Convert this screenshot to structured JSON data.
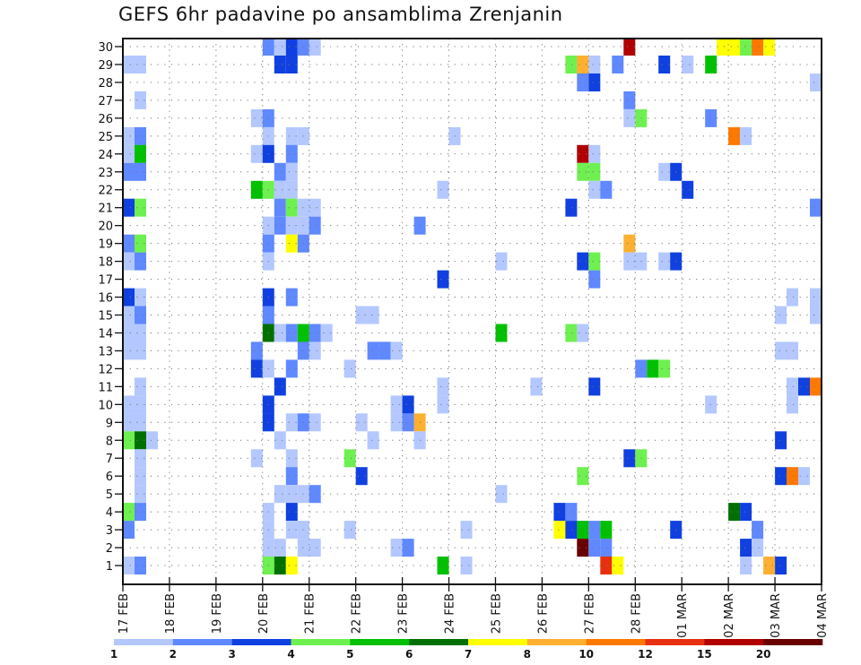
{
  "chart_data": {
    "type": "heatmap",
    "title": "GEFS 6hr padavine po ansamblima Zrenjanin",
    "xlabel": "",
    "ylabel": "",
    "x_tick_labels": [
      "17 FEB",
      "18 FEB",
      "19 FEB",
      "20 FEB",
      "21 FEB",
      "22 FEB",
      "23 FEB",
      "24 FEB",
      "25 FEB",
      "26 FEB",
      "27 FEB",
      "28 FEB",
      "01 MAR",
      "02 MAR",
      "03 MAR",
      "04 MAR"
    ],
    "y_tick_labels": [
      "1",
      "2",
      "3",
      "4",
      "5",
      "6",
      "7",
      "8",
      "9",
      "10",
      "11",
      "12",
      "13",
      "14",
      "15",
      "16",
      "17",
      "18",
      "19",
      "20",
      "21",
      "22",
      "23",
      "24",
      "25",
      "26",
      "27",
      "28",
      "29",
      "30"
    ],
    "ylim": [
      0,
      30
    ],
    "x_steps_per_day": 4,
    "x_steps_total": 60,
    "grid": true,
    "colorbar": {
      "labels": [
        "1",
        "2",
        "3",
        "4",
        "5",
        "6",
        "7",
        "8",
        "10",
        "12",
        "15",
        "20"
      ],
      "colors": [
        "#b4c8ff",
        "#6088ff",
        "#1040e0",
        "#6ef050",
        "#00c000",
        "#007000",
        "#ffff00",
        "#ffb030",
        "#ff7800",
        "#e83010",
        "#b00000",
        "#680000"
      ]
    },
    "cells": [
      [
        30,
        12,
        1
      ],
      [
        30,
        13,
        0
      ],
      [
        30,
        14,
        2
      ],
      [
        30,
        15,
        1
      ],
      [
        30,
        16,
        0
      ],
      [
        30,
        43,
        10
      ],
      [
        30,
        51,
        6
      ],
      [
        30,
        52,
        6
      ],
      [
        30,
        53,
        3
      ],
      [
        30,
        54,
        8
      ],
      [
        30,
        55,
        6
      ],
      [
        29,
        0,
        0
      ],
      [
        29,
        1,
        0
      ],
      [
        29,
        13,
        2
      ],
      [
        29,
        14,
        2
      ],
      [
        29,
        38,
        3
      ],
      [
        29,
        39,
        7
      ],
      [
        29,
        40,
        0
      ],
      [
        29,
        42,
        1
      ],
      [
        29,
        46,
        2
      ],
      [
        29,
        48,
        0
      ],
      [
        29,
        50,
        4
      ],
      [
        28,
        39,
        1
      ],
      [
        28,
        40,
        2
      ],
      [
        28,
        59,
        0
      ],
      [
        27,
        1,
        0
      ],
      [
        27,
        43,
        1
      ],
      [
        26,
        11,
        0
      ],
      [
        26,
        12,
        1
      ],
      [
        26,
        43,
        0
      ],
      [
        26,
        44,
        3
      ],
      [
        26,
        50,
        1
      ],
      [
        25,
        0,
        0
      ],
      [
        25,
        1,
        1
      ],
      [
        25,
        12,
        0
      ],
      [
        25,
        14,
        0
      ],
      [
        25,
        15,
        0
      ],
      [
        25,
        28,
        0
      ],
      [
        25,
        52,
        8
      ],
      [
        25,
        53,
        0
      ],
      [
        24,
        0,
        0
      ],
      [
        24,
        1,
        4
      ],
      [
        24,
        11,
        0
      ],
      [
        24,
        12,
        2
      ],
      [
        24,
        14,
        1
      ],
      [
        24,
        39,
        10
      ],
      [
        24,
        40,
        0
      ],
      [
        23,
        0,
        1
      ],
      [
        23,
        1,
        1
      ],
      [
        23,
        13,
        1
      ],
      [
        23,
        14,
        0
      ],
      [
        23,
        39,
        3
      ],
      [
        23,
        40,
        3
      ],
      [
        23,
        46,
        0
      ],
      [
        23,
        47,
        2
      ],
      [
        22,
        11,
        4
      ],
      [
        22,
        12,
        3
      ],
      [
        22,
        13,
        0
      ],
      [
        22,
        14,
        0
      ],
      [
        22,
        27,
        0
      ],
      [
        22,
        40,
        0
      ],
      [
        22,
        41,
        1
      ],
      [
        22,
        48,
        2
      ],
      [
        21,
        0,
        2
      ],
      [
        21,
        1,
        3
      ],
      [
        21,
        13,
        1
      ],
      [
        21,
        14,
        3
      ],
      [
        21,
        15,
        0
      ],
      [
        21,
        16,
        0
      ],
      [
        21,
        38,
        2
      ],
      [
        21,
        59,
        1
      ],
      [
        21,
        60,
        4
      ],
      [
        20,
        12,
        0
      ],
      [
        20,
        13,
        1
      ],
      [
        20,
        14,
        0
      ],
      [
        20,
        15,
        0
      ],
      [
        20,
        16,
        1
      ],
      [
        20,
        25,
        1
      ],
      [
        19,
        0,
        1
      ],
      [
        19,
        1,
        3
      ],
      [
        19,
        12,
        1
      ],
      [
        19,
        14,
        6
      ],
      [
        19,
        15,
        1
      ],
      [
        19,
        43,
        7
      ],
      [
        18,
        0,
        0
      ],
      [
        18,
        1,
        1
      ],
      [
        18,
        12,
        0
      ],
      [
        18,
        32,
        0
      ],
      [
        18,
        39,
        2
      ],
      [
        18,
        40,
        3
      ],
      [
        18,
        43,
        0
      ],
      [
        18,
        44,
        0
      ],
      [
        18,
        46,
        0
      ],
      [
        18,
        47,
        2
      ],
      [
        17,
        27,
        2
      ],
      [
        17,
        40,
        1
      ],
      [
        16,
        0,
        2
      ],
      [
        16,
        1,
        0
      ],
      [
        16,
        12,
        2
      ],
      [
        16,
        14,
        1
      ],
      [
        16,
        57,
        0
      ],
      [
        16,
        59,
        0
      ],
      [
        15,
        0,
        0
      ],
      [
        15,
        1,
        1
      ],
      [
        15,
        12,
        1
      ],
      [
        15,
        20,
        0
      ],
      [
        15,
        21,
        0
      ],
      [
        15,
        56,
        0
      ],
      [
        15,
        59,
        0
      ],
      [
        14,
        0,
        0
      ],
      [
        14,
        1,
        0
      ],
      [
        14,
        12,
        5
      ],
      [
        14,
        13,
        0
      ],
      [
        14,
        14,
        1
      ],
      [
        14,
        15,
        4
      ],
      [
        14,
        16,
        1
      ],
      [
        14,
        17,
        0
      ],
      [
        14,
        32,
        4
      ],
      [
        14,
        38,
        3
      ],
      [
        14,
        39,
        0
      ],
      [
        13,
        0,
        0
      ],
      [
        13,
        1,
        0
      ],
      [
        13,
        11,
        1
      ],
      [
        13,
        15,
        1
      ],
      [
        13,
        16,
        0
      ],
      [
        13,
        21,
        1
      ],
      [
        13,
        22,
        1
      ],
      [
        13,
        23,
        0
      ],
      [
        13,
        56,
        0
      ],
      [
        13,
        57,
        0
      ],
      [
        12,
        11,
        2
      ],
      [
        12,
        12,
        0
      ],
      [
        12,
        14,
        1
      ],
      [
        12,
        19,
        0
      ],
      [
        12,
        44,
        1
      ],
      [
        12,
        45,
        4
      ],
      [
        12,
        46,
        3
      ],
      [
        11,
        1,
        0
      ],
      [
        11,
        13,
        2
      ],
      [
        11,
        27,
        0
      ],
      [
        11,
        35,
        0
      ],
      [
        11,
        40,
        2
      ],
      [
        11,
        57,
        0
      ],
      [
        11,
        58,
        2
      ],
      [
        11,
        59,
        8
      ],
      [
        11,
        60,
        1
      ],
      [
        10,
        0,
        0
      ],
      [
        10,
        1,
        0
      ],
      [
        10,
        12,
        2
      ],
      [
        10,
        23,
        0
      ],
      [
        10,
        24,
        2
      ],
      [
        10,
        27,
        0
      ],
      [
        10,
        50,
        0
      ],
      [
        10,
        57,
        0
      ],
      [
        9,
        0,
        0
      ],
      [
        9,
        1,
        0
      ],
      [
        9,
        12,
        2
      ],
      [
        9,
        14,
        0
      ],
      [
        9,
        15,
        1
      ],
      [
        9,
        16,
        0
      ],
      [
        9,
        20,
        0
      ],
      [
        9,
        23,
        0
      ],
      [
        9,
        24,
        1
      ],
      [
        9,
        25,
        7
      ],
      [
        8,
        0,
        3
      ],
      [
        8,
        1,
        5
      ],
      [
        8,
        2,
        0
      ],
      [
        8,
        13,
        0
      ],
      [
        8,
        21,
        0
      ],
      [
        8,
        25,
        0
      ],
      [
        8,
        56,
        2
      ],
      [
        8,
        60,
        1
      ],
      [
        7,
        1,
        0
      ],
      [
        7,
        11,
        0
      ],
      [
        7,
        14,
        0
      ],
      [
        7,
        19,
        3
      ],
      [
        7,
        43,
        2
      ],
      [
        7,
        44,
        3
      ],
      [
        6,
        1,
        0
      ],
      [
        6,
        14,
        1
      ],
      [
        6,
        20,
        2
      ],
      [
        6,
        39,
        3
      ],
      [
        6,
        56,
        2
      ],
      [
        6,
        57,
        8
      ],
      [
        6,
        58,
        0
      ],
      [
        5,
        1,
        0
      ],
      [
        5,
        13,
        0
      ],
      [
        5,
        14,
        0
      ],
      [
        5,
        15,
        0
      ],
      [
        5,
        16,
        1
      ],
      [
        5,
        32,
        0
      ],
      [
        4,
        0,
        3
      ],
      [
        4,
        1,
        1
      ],
      [
        4,
        12,
        0
      ],
      [
        4,
        14,
        2
      ],
      [
        4,
        37,
        2
      ],
      [
        4,
        38,
        1
      ],
      [
        4,
        52,
        5
      ],
      [
        4,
        53,
        2
      ],
      [
        3,
        0,
        1
      ],
      [
        3,
        12,
        0
      ],
      [
        3,
        14,
        0
      ],
      [
        3,
        15,
        0
      ],
      [
        3,
        19,
        0
      ],
      [
        3,
        29,
        0
      ],
      [
        3,
        37,
        6
      ],
      [
        3,
        38,
        2
      ],
      [
        3,
        39,
        4
      ],
      [
        3,
        40,
        1
      ],
      [
        3,
        41,
        4
      ],
      [
        3,
        47,
        2
      ],
      [
        3,
        54,
        1
      ],
      [
        2,
        12,
        0
      ],
      [
        2,
        13,
        0
      ],
      [
        2,
        15,
        0
      ],
      [
        2,
        16,
        0
      ],
      [
        2,
        23,
        0
      ],
      [
        2,
        24,
        1
      ],
      [
        2,
        39,
        11
      ],
      [
        2,
        40,
        1
      ],
      [
        2,
        41,
        1
      ],
      [
        2,
        53,
        2
      ],
      [
        2,
        54,
        0
      ],
      [
        1,
        0,
        0
      ],
      [
        1,
        1,
        1
      ],
      [
        1,
        12,
        3
      ],
      [
        1,
        13,
        5
      ],
      [
        1,
        14,
        6
      ],
      [
        1,
        27,
        4
      ],
      [
        1,
        29,
        0
      ],
      [
        1,
        41,
        9
      ],
      [
        1,
        42,
        6
      ],
      [
        1,
        53,
        0
      ],
      [
        1,
        55,
        7
      ],
      [
        1,
        56,
        2
      ]
    ]
  }
}
